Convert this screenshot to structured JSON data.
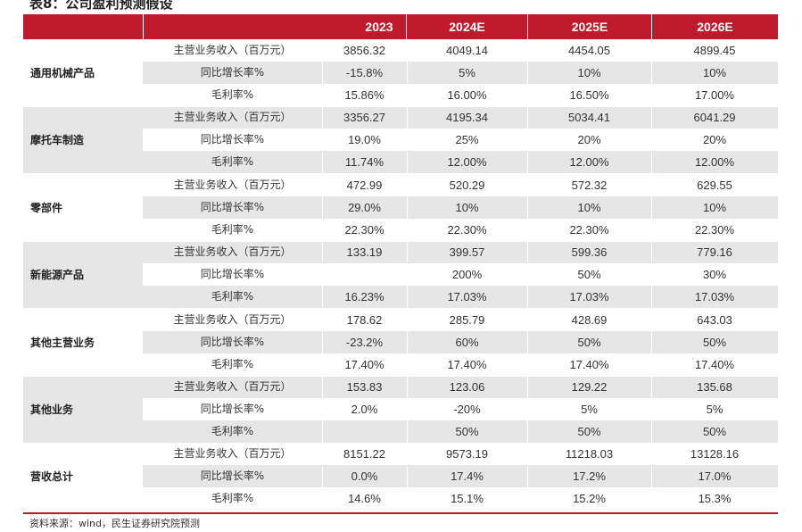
{
  "title": "表8：公司盈利预测假设",
  "header": {
    "label": "",
    "years": [
      "2023",
      "2024E",
      "2025E",
      "2026E"
    ]
  },
  "groups": [
    {
      "name": "通用机械产品",
      "rows": [
        {
          "label": "主营业务收入（百万元）",
          "values": [
            "3856.32",
            "4049.14",
            "4454.05",
            "4899.45"
          ]
        },
        {
          "label": "同比增长率%",
          "values": [
            "-15.8%",
            "5%",
            "10%",
            "10%"
          ]
        },
        {
          "label": "毛利率%",
          "values": [
            "15.86%",
            "16.00%",
            "16.50%",
            "17.00%"
          ]
        }
      ]
    },
    {
      "name": "摩托车制造",
      "rows": [
        {
          "label": "主营业务收入（百万元）",
          "values": [
            "3356.27",
            "4195.34",
            "5034.41",
            "6041.29"
          ]
        },
        {
          "label": "同比增长率%",
          "values": [
            "19.0%",
            "25%",
            "20%",
            "20%"
          ]
        },
        {
          "label": "毛利率%",
          "values": [
            "11.74%",
            "12.00%",
            "12.00%",
            "12.00%"
          ]
        }
      ]
    },
    {
      "name": "零部件",
      "rows": [
        {
          "label": "主营业务收入（百万元）",
          "values": [
            "472.99",
            "520.29",
            "572.32",
            "629.55"
          ]
        },
        {
          "label": "同比增长率%",
          "values": [
            "29.0%",
            "10%",
            "10%",
            "10%"
          ]
        },
        {
          "label": "毛利率%",
          "values": [
            "22.30%",
            "22.30%",
            "22.30%",
            "22.30%"
          ]
        }
      ]
    },
    {
      "name": "新能源产品",
      "rows": [
        {
          "label": "主营业务收入（百万元）",
          "values": [
            "133.19",
            "399.57",
            "599.36",
            "779.16"
          ]
        },
        {
          "label": "同比增长率%",
          "values": [
            "",
            "200%",
            "50%",
            "30%"
          ]
        },
        {
          "label": "毛利率%",
          "values": [
            "16.23%",
            "17.03%",
            "17.03%",
            "17.03%"
          ]
        }
      ]
    },
    {
      "name": "其他主营业务",
      "rows": [
        {
          "label": "主营业务收入（百万元）",
          "values": [
            "178.62",
            "285.79",
            "428.69",
            "643.03"
          ]
        },
        {
          "label": "同比增长率%",
          "values": [
            "-23.2%",
            "60%",
            "50%",
            "50%"
          ]
        },
        {
          "label": "毛利率%",
          "values": [
            "17.40%",
            "17.40%",
            "17.40%",
            "17.40%"
          ]
        }
      ]
    },
    {
      "name": "其他业务",
      "rows": [
        {
          "label": "主营业务收入（百万元）",
          "values": [
            "153.83",
            "123.06",
            "129.22",
            "135.68"
          ]
        },
        {
          "label": "同比增长率%",
          "values": [
            "2.0%",
            "-20%",
            "5%",
            "5%"
          ]
        },
        {
          "label": "毛利率%",
          "values": [
            "",
            "50%",
            "50%",
            "50%"
          ]
        }
      ]
    },
    {
      "name": "营收总计",
      "rows": [
        {
          "label": "主营业务收入（百万元）",
          "values": [
            "8151.22",
            "9573.19",
            "11218.03",
            "13128.16"
          ]
        },
        {
          "label": "同比增长率%",
          "values": [
            "0.0%",
            "17.4%",
            "17.2%",
            "17.0%"
          ]
        },
        {
          "label": "毛利率%",
          "values": [
            "14.6%",
            "15.1%",
            "15.2%",
            "15.3%"
          ]
        }
      ]
    }
  ],
  "source": "资料来源：wind，民生证券研究院预测",
  "colors": {
    "accent": "#c0192b",
    "shade": "#e6e6e6"
  }
}
